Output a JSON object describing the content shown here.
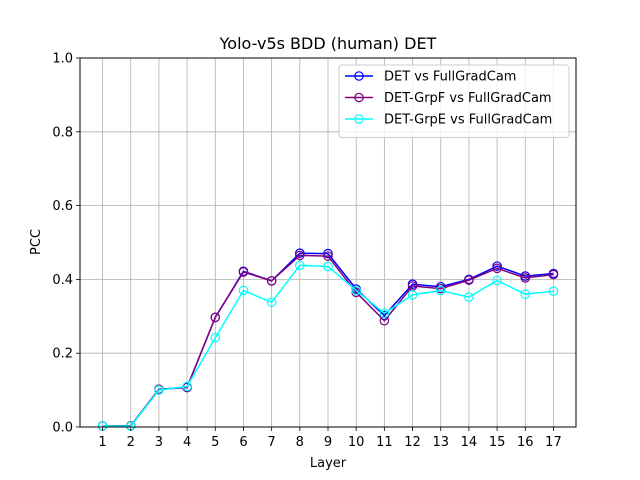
{
  "chart_data": {
    "type": "line",
    "title": "Yolo-v5s BDD (human) DET",
    "xlabel": "Layer",
    "ylabel": "PCC",
    "x": [
      1,
      2,
      3,
      4,
      5,
      6,
      7,
      8,
      9,
      10,
      11,
      12,
      13,
      14,
      15,
      16,
      17
    ],
    "xticks": [
      "1",
      "2",
      "3",
      "4",
      "5",
      "6",
      "7",
      "8",
      "9",
      "10",
      "11",
      "12",
      "13",
      "14",
      "15",
      "16",
      "17"
    ],
    "yticks": [
      "0.0",
      "0.2",
      "0.4",
      "0.6",
      "0.8",
      "1.0"
    ],
    "ylim": [
      0,
      1.0
    ],
    "xlim": [
      0.2,
      17.8
    ],
    "grid": true,
    "legend_position": "upper right",
    "series": [
      {
        "name": "DET vs FullGradCam",
        "color": "#0000ff",
        "values": [
          0.003,
          0.003,
          0.102,
          0.107,
          0.297,
          0.422,
          0.396,
          0.471,
          0.47,
          0.374,
          0.302,
          0.387,
          0.38,
          0.4,
          0.436,
          0.409,
          0.416
        ]
      },
      {
        "name": "DET-GrpF vs FullGradCam",
        "color": "#800080",
        "values": [
          0.003,
          0.003,
          0.102,
          0.108,
          0.297,
          0.42,
          0.396,
          0.465,
          0.463,
          0.365,
          0.288,
          0.382,
          0.375,
          0.398,
          0.43,
          0.404,
          0.413
        ]
      },
      {
        "name": "DET-GrpE vs FullGradCam",
        "color": "#00ffff",
        "values": [
          0.003,
          0.002,
          0.1,
          0.11,
          0.242,
          0.37,
          0.338,
          0.438,
          0.435,
          0.37,
          0.308,
          0.358,
          0.37,
          0.352,
          0.397,
          0.36,
          0.368
        ]
      }
    ]
  }
}
